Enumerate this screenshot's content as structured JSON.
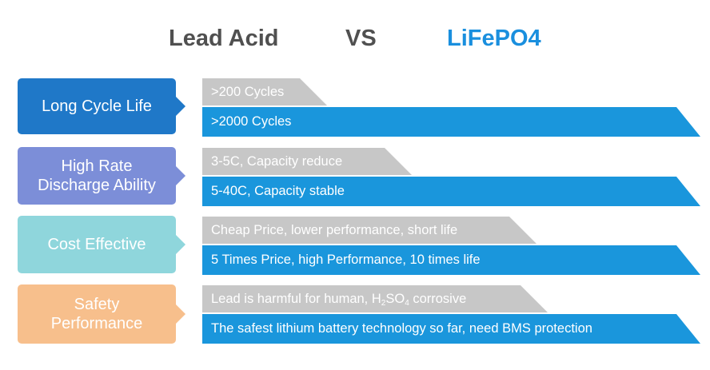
{
  "header": {
    "left": "Lead Acid",
    "vs": "VS",
    "right": "LiFePO4"
  },
  "colors": {
    "row1_label": "#1f78c8",
    "row2_label": "#7c8ed8",
    "row3_label": "#8fd6dc",
    "row4_label": "#f7bf8c",
    "gray_bar": "#c7c7c7",
    "blue_bar": "#1a96dc",
    "lifepo4_text": "#1a8fde"
  },
  "rows": [
    {
      "label_line1": "Long Cycle Life",
      "label_line2": "",
      "lead_acid": ">200 Cycles",
      "lifepo4": ">2000 Cycles"
    },
    {
      "label_line1": "High Rate",
      "label_line2": "Discharge Ability",
      "lead_acid": "3-5C, Capacity reduce",
      "lifepo4": "5-40C, Capacity stable"
    },
    {
      "label_line1": "Cost Effective",
      "label_line2": "",
      "lead_acid": "Cheap Price, lower performance, short life",
      "lifepo4": "5 Times Price, high Performance, 10 times life"
    },
    {
      "label_line1": "Safety",
      "label_line2": "Performance",
      "lead_acid_before": "Lead is harmful for human, H",
      "lead_acid_sub1": "2",
      "lead_acid_mid": "SO",
      "lead_acid_sub2": "4",
      "lead_acid_after": " corrosive",
      "lifepo4": "The safest lithium battery technology so far, need BMS protection"
    }
  ]
}
